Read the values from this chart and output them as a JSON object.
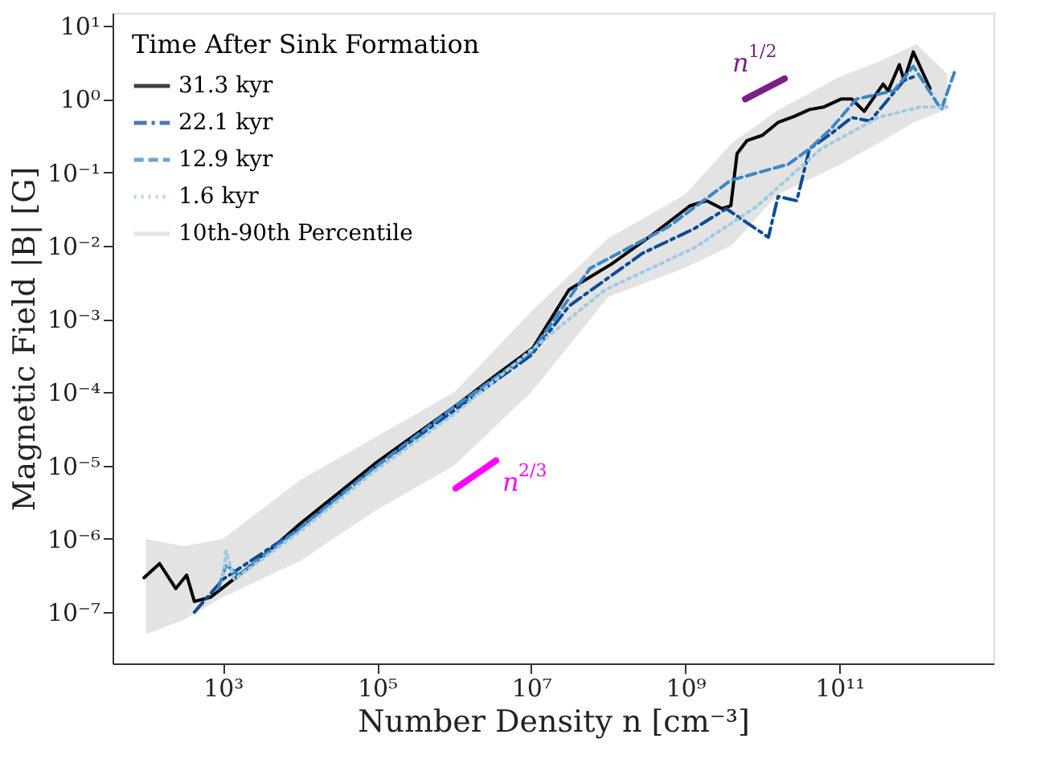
{
  "chart_data": {
    "type": "line",
    "xlabel": "Number Density n [cm⁻³]",
    "ylabel": "Magnetic Field |B| [G]",
    "legend_title": "Time After Sink Formation",
    "log": "xy",
    "grid": false,
    "legend": "top left",
    "xlim": [
      37,
      10000000000000.0
    ],
    "ylim": [
      2e-08,
      15
    ],
    "xticks": [
      {
        "value": 1000,
        "label": "10³"
      },
      {
        "value": 100000,
        "label": "10⁵"
      },
      {
        "value": 10000000,
        "label": "10⁷"
      },
      {
        "value": 1000000000,
        "label": "10⁹"
      },
      {
        "value": 100000000000,
        "label": "10¹¹"
      }
    ],
    "yticks": [
      {
        "value": 1e-07,
        "label": "10⁻⁷"
      },
      {
        "value": 1e-06,
        "label": "10⁻⁶"
      },
      {
        "value": 1e-05,
        "label": "10⁻⁵"
      },
      {
        "value": 0.0001,
        "label": "10⁻⁴"
      },
      {
        "value": 0.001,
        "label": "10⁻³"
      },
      {
        "value": 0.01,
        "label": "10⁻²"
      },
      {
        "value": 0.1,
        "label": "10⁻¹"
      },
      {
        "value": 1,
        "label": "10⁰"
      },
      {
        "value": 10,
        "label": "10¹"
      }
    ],
    "series": [
      {
        "name": "31.3 kyr",
        "color": "#000000",
        "line_style": "solid",
        "x": [
          95,
          151,
          245,
          339,
          427,
          692,
          3200,
          10000.0,
          95000.0,
          1000000.0,
          3200000.0,
          10500000.0,
          31000000.0,
          110000000.0,
          370000000.0,
          1150000000.0,
          1900000000.0,
          3000000000.0,
          3900000000.0,
          4700000000.0,
          6300000000.0,
          10000000000.0,
          16000000000.0,
          26000000000.0,
          41000000000.0,
          63000000000.0,
          105000000000.0,
          145000000000.0,
          210000000000.0,
          370000000000.0,
          430000000000.0,
          600000000000.0,
          690000000000.0,
          910000000000.0,
          1500000000000.0
        ],
        "values": [
          2.95e-07,
          4.6e-07,
          2.1e-07,
          3.2e-07,
          1.4e-07,
          1.6e-07,
          5.6e-07,
          1.6e-06,
          1.07e-05,
          6.3e-05,
          0.00016,
          0.0004,
          0.0025,
          0.0056,
          0.014,
          0.035,
          0.041,
          0.032,
          0.035,
          0.18,
          0.27,
          0.32,
          0.48,
          0.58,
          0.72,
          0.78,
          1.0,
          1.0,
          0.68,
          1.6,
          1.3,
          2.95,
          1.8,
          4.4,
          1.4
        ]
      },
      {
        "name": "22.1 kyr",
        "color": "#0d4a94",
        "line_style": "dashdot",
        "x": [
          427,
          1000,
          10000.0,
          100000.0,
          1000000.0,
          10000000.0,
          31000000.0,
          280000000.0,
          1300000000.0,
          3400000000.0,
          12000000000.0,
          16000000000.0,
          28000000000.0,
          41000000000.0,
          79000000000.0,
          145000000000.0,
          250000000000.0,
          690000000000.0,
          910000000000.0
        ],
        "values": [
          1e-07,
          2.8e-07,
          1.4e-06,
          1e-05,
          5.6e-05,
          0.00032,
          0.0015,
          0.0079,
          0.017,
          0.032,
          0.013,
          0.047,
          0.041,
          0.21,
          0.34,
          0.56,
          0.5,
          1.8,
          2.0
        ]
      },
      {
        "name": "12.9 kyr",
        "color": "#3a87c8",
        "line_style": "dashed",
        "x": [
          870,
          1100,
          1600,
          10000.0,
          100000.0,
          1000000.0,
          10000000.0,
          58000000.0,
          600000000.0,
          3900000000.0,
          22000000000.0,
          41000000000.0,
          79000000000.0,
          166000000000.0,
          510000000000.0,
          910000000000.0,
          2100000000000.0,
          3100000000000.0
        ],
        "values": [
          2.1e-07,
          4.4e-07,
          3.2e-07,
          1.4e-06,
          1e-05,
          6.3e-05,
          0.00035,
          0.0049,
          0.018,
          0.078,
          0.13,
          0.21,
          0.4,
          1.0,
          1.3,
          2.8,
          0.72,
          2.3
        ]
      },
      {
        "name": "1.6 kyr",
        "color": "#9ecae1",
        "line_style": "dotted",
        "x": [
          1000,
          1100,
          1400,
          10000.0,
          100000.0,
          1000000.0,
          12000000.0,
          91000000.0,
          1300000000.0,
          8700000000.0,
          58000000000.0,
          320000000000.0,
          1100000000000.0,
          2500000000000.0
        ],
        "values": [
          3.2e-07,
          6.8e-07,
          2.8e-07,
          1.26e-06,
          8.9e-06,
          5e-05,
          0.00044,
          0.0025,
          0.0093,
          0.035,
          0.21,
          0.56,
          0.78,
          0.78
        ]
      },
      {
        "name": "10th-90th Percentile",
        "type": "area",
        "color": "#d9d9d9",
        "x": [
          100,
          316,
          1000,
          10000.0,
          100000.0,
          1000000.0,
          10000000.0,
          100000000.0,
          1000000000.0,
          4000000000.0,
          16000000000.0,
          100000000000.0,
          320000000000.0,
          1000000000000.0,
          2500000000000.0
        ],
        "values": [
          null,
          null,
          null,
          null,
          null,
          null,
          null,
          null,
          null,
          null,
          null,
          null,
          null,
          null,
          null
        ],
        "upper": [
          1e-06,
          7.9e-07,
          1e-06,
          6.3e-06,
          2.5e-05,
          0.0001,
          0.00126,
          0.0126,
          0.05,
          0.25,
          0.71,
          2.0,
          3.2,
          5.6,
          2.2
        ],
        "lower": [
          5e-08,
          7.9e-08,
          1.6e-07,
          5e-07,
          2.5e-06,
          1e-05,
          0.0001,
          0.002,
          0.005,
          0.01,
          0.05,
          0.126,
          0.25,
          0.5,
          0.72
        ]
      },
      {
        "color": "#7b1f86",
        "line_style": "solid",
        "x": [
          6000000000.0,
          19500000000.0
        ],
        "values": [
          1.0,
          1.9
        ]
      },
      {
        "color": "#ff00ff",
        "line_style": "solid",
        "x": [
          1050000.0,
          3500000.0
        ],
        "values": [
          4.9e-06,
          1.17e-05
        ]
      }
    ],
    "annotations": [
      "n$^{1/2}$",
      "n$^{2/3}$"
    ]
  }
}
